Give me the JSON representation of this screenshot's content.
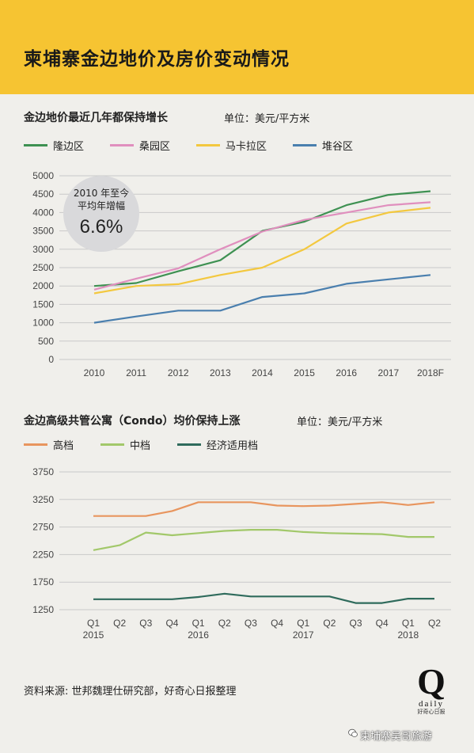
{
  "header": {
    "title": "柬埔寨金边地价及房价变动情况"
  },
  "callout": {
    "line1": "2010 年至今",
    "line2": "平均年增幅",
    "value": "6.6%"
  },
  "source": "资料来源: 世邦魏理仕研究部，好奇心日报整理",
  "logo": {
    "letter": "Q",
    "word": "daily",
    "cn": "好奇心日报"
  },
  "watermark": "柬埔寨吴哥旅游",
  "colors": {
    "header_bg": "#f6c432",
    "page_bg": "#f0efeb"
  },
  "chart_data": [
    {
      "type": "line",
      "title": "金边地价最近几年都保持增长",
      "unit_label": "单位：美元/平方米",
      "categories": [
        "2010",
        "2011",
        "2012",
        "2013",
        "2014",
        "2015",
        "2016",
        "2017",
        "2018F"
      ],
      "ylim": [
        0,
        5000
      ],
      "yticks": [
        0,
        500,
        1000,
        1500,
        2000,
        2500,
        3000,
        3500,
        4000,
        4500,
        5000
      ],
      "grid": true,
      "legend_position": "top",
      "series": [
        {
          "name": "隆边区",
          "color": "#3e9152",
          "values": [
            2000,
            2080,
            2400,
            2700,
            3500,
            3750,
            4200,
            4480,
            4580
          ]
        },
        {
          "name": "桑园区",
          "color": "#e08fbe",
          "values": [
            1900,
            2200,
            2480,
            3000,
            3480,
            3800,
            4000,
            4200,
            4280
          ]
        },
        {
          "name": "马卡拉区",
          "color": "#f3c83f",
          "values": [
            1800,
            2000,
            2050,
            2300,
            2500,
            3000,
            3700,
            4000,
            4130
          ]
        },
        {
          "name": "堆谷区",
          "color": "#4a7fae",
          "values": [
            1000,
            1170,
            1330,
            1330,
            1700,
            1800,
            2060,
            2180,
            2300
          ]
        }
      ]
    },
    {
      "type": "line",
      "title": "金边高级共管公寓（Condo）均价保持上涨",
      "unit_label": "单位：美元/平方米",
      "categories": [
        "Q1",
        "Q2",
        "Q3",
        "Q4",
        "Q1",
        "Q2",
        "Q3",
        "Q4",
        "Q1",
        "Q2",
        "Q3",
        "Q4",
        "Q1",
        "Q2"
      ],
      "year_labels": [
        {
          "index": 0,
          "label": "2015"
        },
        {
          "index": 4,
          "label": "2016"
        },
        {
          "index": 8,
          "label": "2017"
        },
        {
          "index": 12,
          "label": "2018"
        }
      ],
      "ylim": [
        1250,
        3750
      ],
      "yticks": [
        1250,
        1750,
        2250,
        2750,
        3250,
        3750
      ],
      "grid": true,
      "legend_position": "top",
      "series": [
        {
          "name": "高档",
          "color": "#e8955e",
          "values": [
            2950,
            2950,
            2950,
            3040,
            3200,
            3200,
            3200,
            3140,
            3130,
            3140,
            3170,
            3200,
            3150,
            3200
          ]
        },
        {
          "name": "中档",
          "color": "#a2c86a",
          "values": [
            2330,
            2420,
            2650,
            2600,
            2640,
            2680,
            2700,
            2700,
            2660,
            2640,
            2630,
            2620,
            2570,
            2570
          ]
        },
        {
          "name": "经济适用档",
          "color": "#2f6b5c",
          "values": [
            1440,
            1440,
            1440,
            1440,
            1480,
            1540,
            1490,
            1490,
            1490,
            1490,
            1370,
            1370,
            1450,
            1450
          ]
        }
      ]
    }
  ]
}
